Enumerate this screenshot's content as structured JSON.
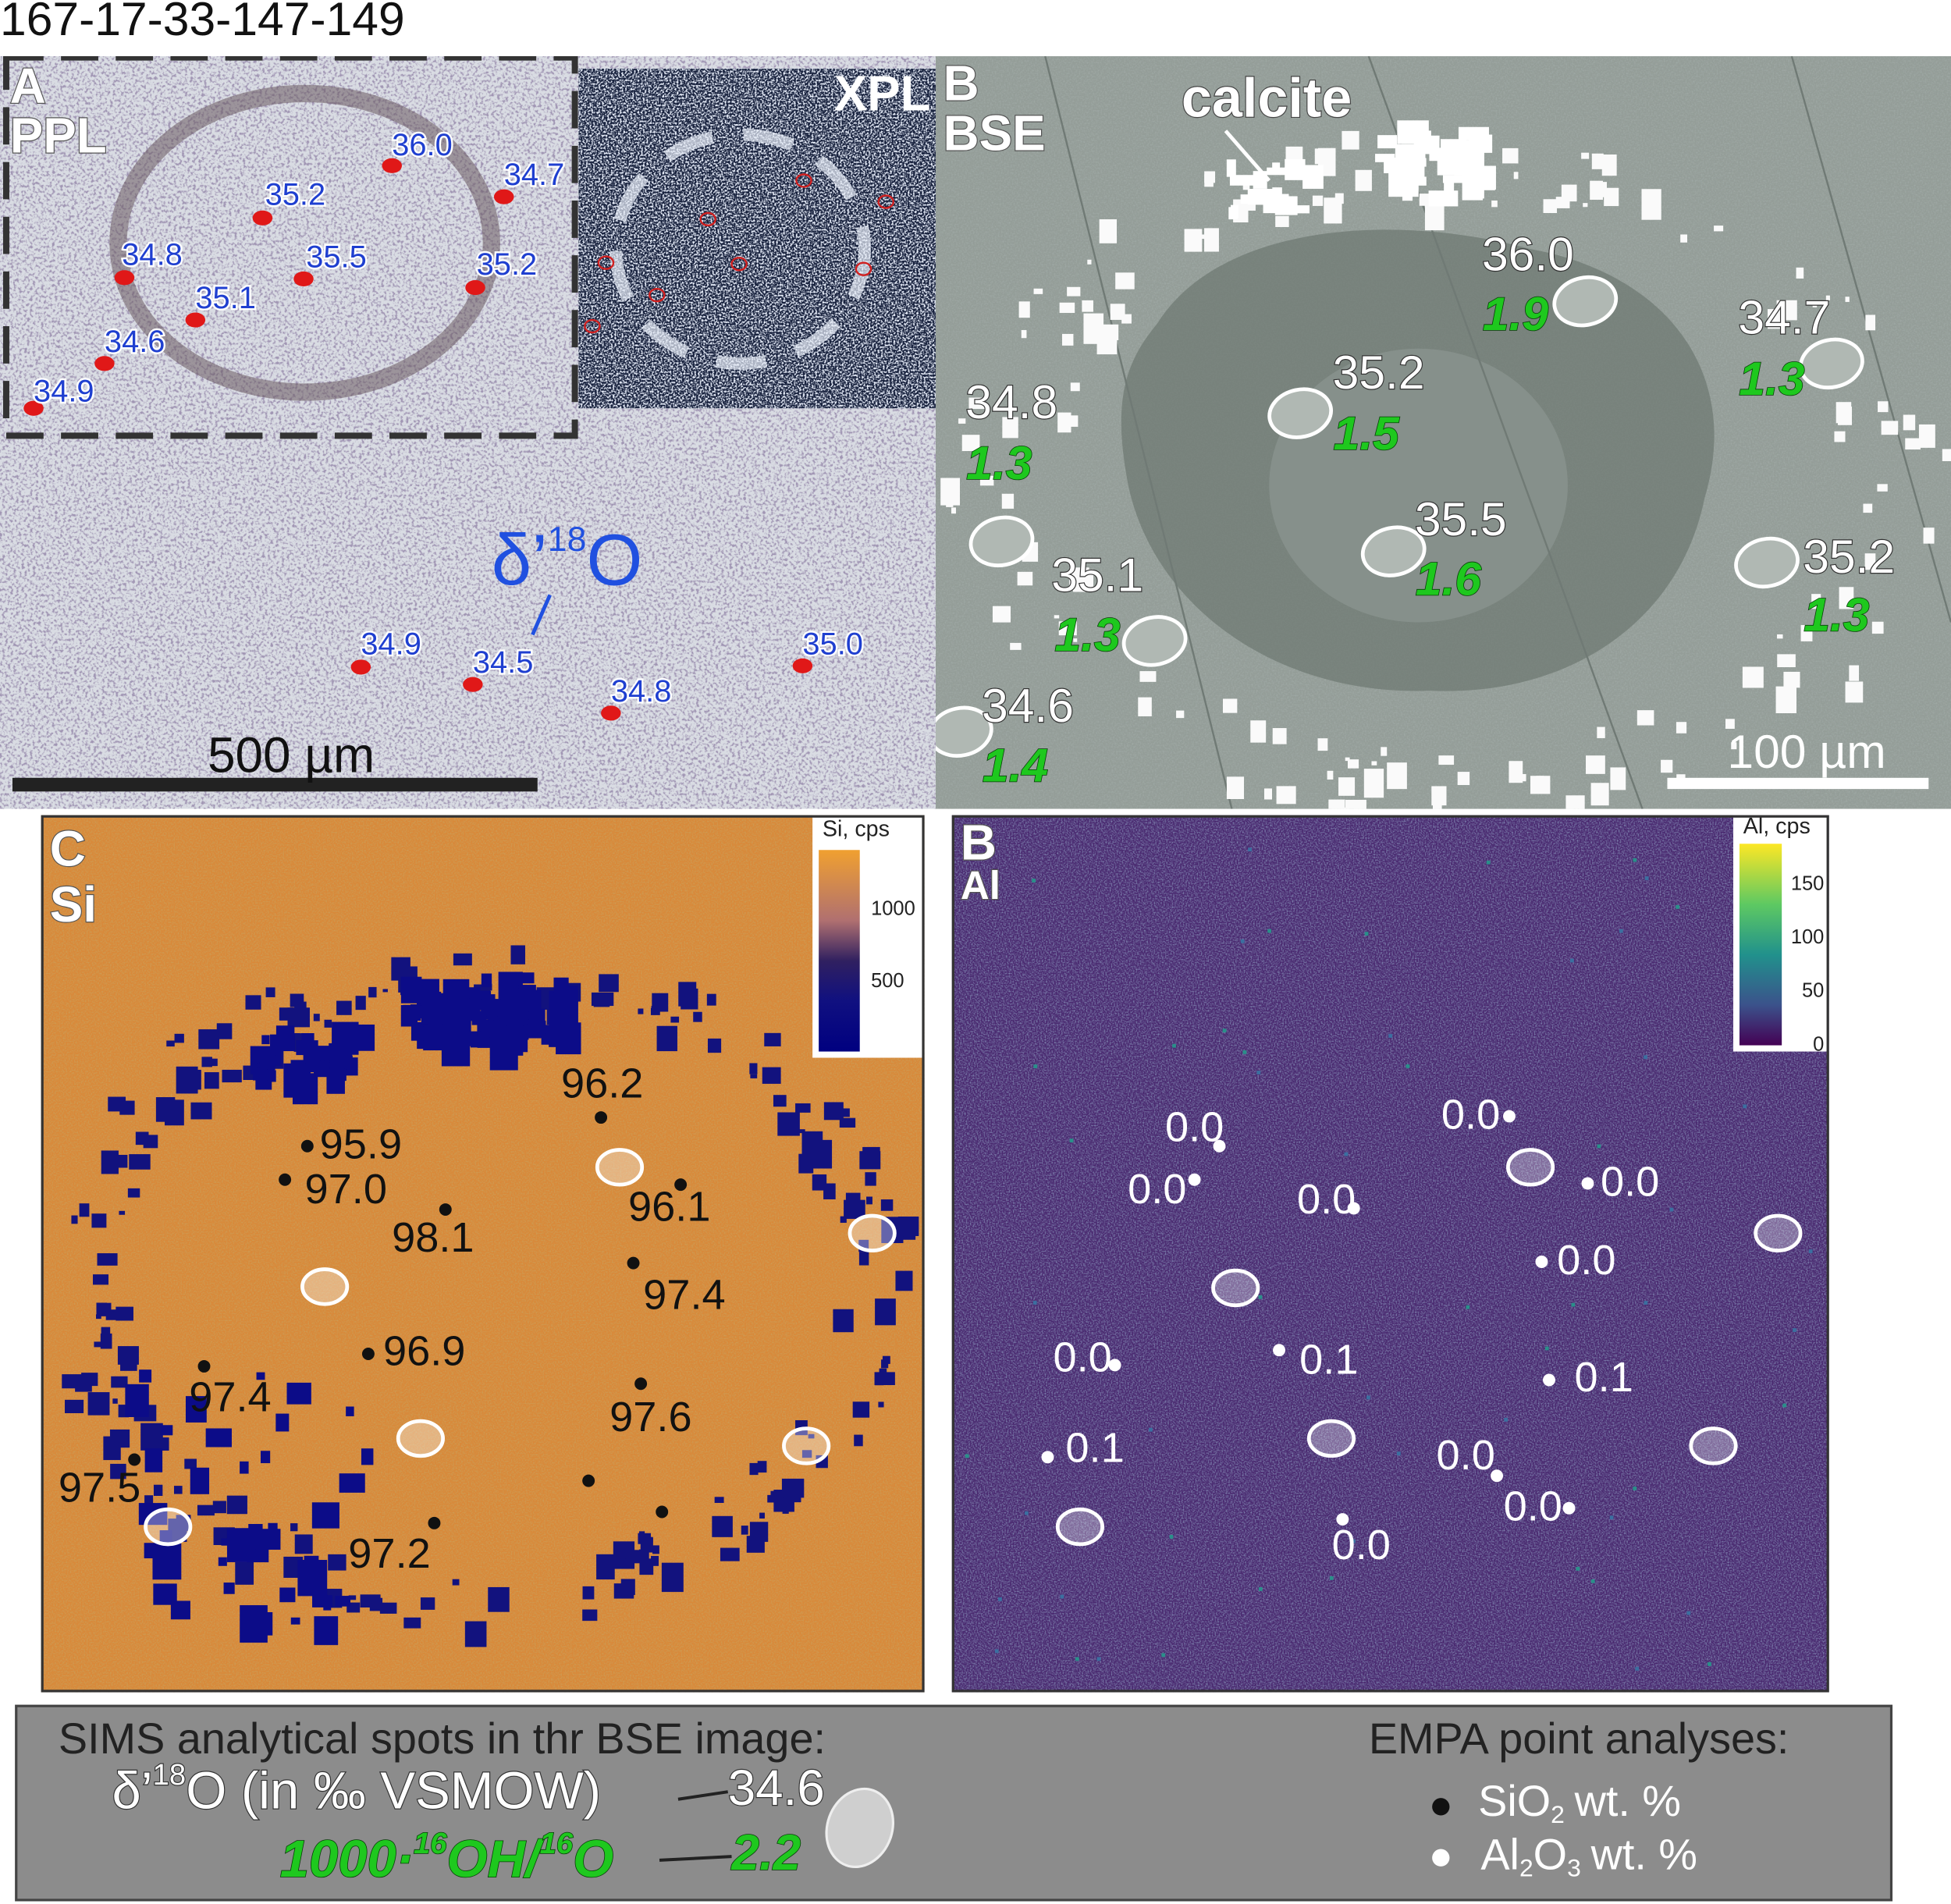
{
  "title": "167-17-33-147-149",
  "panel_a": {
    "label": "A",
    "mode": "PPL",
    "inset_mode": "XPL",
    "annotation": {
      "prefix": "δ’",
      "sup": "18",
      "suffix": "O"
    },
    "spots": [
      "36.0",
      "34.7",
      "35.2",
      "34.8",
      "35.5",
      "35.2",
      "35.1",
      "34.6",
      "34.9",
      "34.9",
      "34.5",
      "35.0",
      "34.8"
    ],
    "scale_bar": "500 µm"
  },
  "panel_b": {
    "label": "B",
    "mode": "BSE",
    "mineral": "calcite",
    "spots": [
      {
        "d18o": "36.0",
        "oh": "1.9"
      },
      {
        "d18o": "34.7",
        "oh": "1.3"
      },
      {
        "d18o": "34.8",
        "oh": "1.3"
      },
      {
        "d18o": "35.2",
        "oh": "1.5"
      },
      {
        "d18o": "35.5",
        "oh": "1.6"
      },
      {
        "d18o": "35.2",
        "oh": "1.3"
      },
      {
        "d18o": "35.1",
        "oh": "1.3"
      },
      {
        "d18o": "34.6",
        "oh": "1.4"
      }
    ],
    "scale_bar": "100 µm"
  },
  "panel_c": {
    "label": "C",
    "element": "Si",
    "colorbar": {
      "title": "Si, cps",
      "ticks": [
        "1000",
        "500"
      ]
    },
    "sio2": [
      "96.2",
      "95.9",
      "97.0",
      "96.1",
      "98.1",
      "97.4",
      "96.9",
      "97.4",
      "97.6",
      "97.5",
      "97.2"
    ]
  },
  "panel_d": {
    "label": "B",
    "element": "Al",
    "colorbar": {
      "title": "Al, cps",
      "ticks": [
        "150",
        "100",
        "50",
        "0"
      ]
    },
    "al2o3": [
      "0.0",
      "0.0",
      "0.0",
      "0.0",
      "0.0",
      "0.0",
      "0.1",
      "0.0",
      "0.1",
      "0.1",
      "0.0",
      "0.0",
      "0.0"
    ]
  },
  "legend": {
    "sims_title": "SIMS analytical spots in thr BSE image:",
    "d18o": {
      "prefix": "δ’",
      "sup": "18",
      "suffix": "O (in ‰ VSMOW)"
    },
    "d18o_example": "34.6",
    "oh": {
      "prefix": "1000·",
      "sup1": "16",
      "mid": "OH/",
      "sup2": "16",
      "suffix": "O"
    },
    "oh_example": "2.2",
    "empa_title": "EMPA point analyses:",
    "sio2": {
      "formula": "SiO",
      "sub": "2",
      "unit": "wt. %"
    },
    "al2o3": {
      "a": "Al",
      "sub1": "2",
      "b": "O",
      "sub2": "3",
      "unit": "wt. %"
    }
  }
}
